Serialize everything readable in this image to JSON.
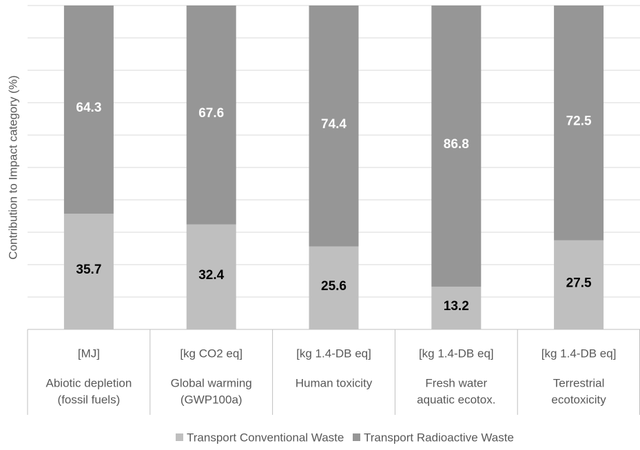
{
  "chart_data": {
    "type": "stacked_bar",
    "y_label": "Contribution to Impact category (%)",
    "units": [
      "[MJ]",
      "[kg CO2 eq]",
      "[kg 1.4-DB eq]",
      "[kg 1.4-DB eq]",
      "[kg 1.4-DB eq]"
    ],
    "categories": [
      [
        "Abiotic depletion",
        "(fossil fuels)"
      ],
      [
        "Global warming",
        "(GWP100a)"
      ],
      [
        "Human toxicity"
      ],
      [
        "Fresh water",
        "aquatic ecotox."
      ],
      [
        "Terrestrial",
        "ecotoxicity"
      ]
    ],
    "series": [
      {
        "name": "Transport Conventional Waste",
        "color": "#bfbfbf",
        "label_color": "#000000",
        "values": [
          35.7,
          32.4,
          25.6,
          13.2,
          27.5
        ]
      },
      {
        "name": "Transport Radioactive Waste",
        "color": "#969696",
        "label_color": "#ffffff",
        "values": [
          64.3,
          67.6,
          74.4,
          86.8,
          72.5
        ]
      }
    ],
    "ylim": [
      0,
      100
    ],
    "yticks": [
      0,
      10,
      20,
      30,
      40,
      50,
      60,
      70,
      80,
      90,
      100
    ],
    "grid": true,
    "legend": "bottom"
  }
}
